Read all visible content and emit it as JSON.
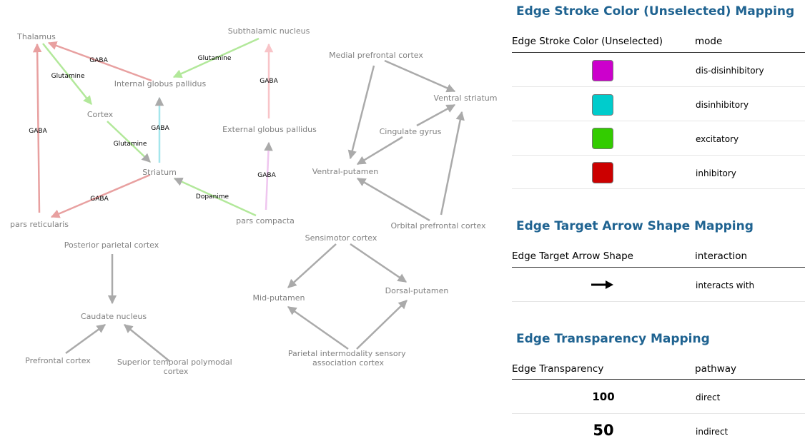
{
  "network": {
    "nodes": {
      "thalamus": "Thalamus",
      "subthalamic": "Subthalamic nucleus",
      "internal_gp": "Internal globus pallidus",
      "cortex": "Cortex",
      "external_gp": "External globus pallidus",
      "striatum": "Striatum",
      "pars_reticularis": "pars reticularis",
      "pars_compacta": "pars compacta",
      "medial_pfc": "Medial prefrontal cortex",
      "ventral_striatum": "Ventral striatum",
      "cingulate": "Cingulate gyrus",
      "ventral_putamen": "Ventral-putamen",
      "orbital_pfc": "Orbital prefrontal cortex",
      "sensimotor": "Sensimotor cortex",
      "mid_putamen": "Mid-putamen",
      "dorsal_putamen": "Dorsal-putamen",
      "parietal_line1": "Parietal intermodality sensory",
      "parietal_line2": "association cortex",
      "posterior_parietal": "Posterior parietal cortex",
      "caudate": "Caudate nucleus",
      "prefrontal": "Prefrontal cortex",
      "superior_temporal_line1": "Superior temporal polymodal",
      "superior_temporal_line2": "cortex"
    },
    "edges": {
      "ig_thal": "GABA",
      "thal_cortex": "Glutamine",
      "stn_ig": "Glutamine",
      "eg_stn": "GABA",
      "pr_thal": "GABA",
      "str_ig": "GABA",
      "cortex_str": "Glutamine",
      "str_pr": "GABA",
      "pc_str": "Dopanime",
      "pc_eg": "GABA"
    },
    "colors": {
      "inhibitory_faded": "#e8a0a0",
      "excitatory_faded": "#b2e89a",
      "disinhibitory_faded": "#a4e6ec",
      "dis_disinhibitory_faded": "#efc6ef",
      "inhibitory_light": "#f8c4c8",
      "default_edge": "#aaaaaa"
    }
  },
  "legend": {
    "color_section": {
      "title": "Edge Stroke Color (Unselected) Mapping",
      "col1": "Edge Stroke Color (Unselected)",
      "col2": "mode",
      "rows": [
        {
          "color": "#cc00cc",
          "label": "dis-disinhibitory"
        },
        {
          "color": "#00cccc",
          "label": "disinhibitory"
        },
        {
          "color": "#33cc00",
          "label": "excitatory"
        },
        {
          "color": "#cc0000",
          "label": "inhibitory"
        }
      ]
    },
    "arrow_section": {
      "title": "Edge Target Arrow Shape Mapping",
      "col1": "Edge Target Arrow Shape",
      "col2": "interaction",
      "rows": [
        {
          "shape": "arrow",
          "label": "interacts with"
        }
      ]
    },
    "transparency_section": {
      "title": "Edge Transparency Mapping",
      "col1": "Edge Transparency",
      "col2": "pathway",
      "rows": [
        {
          "value": "100",
          "label": "direct"
        },
        {
          "value": "50",
          "label": "indirect"
        }
      ]
    }
  }
}
